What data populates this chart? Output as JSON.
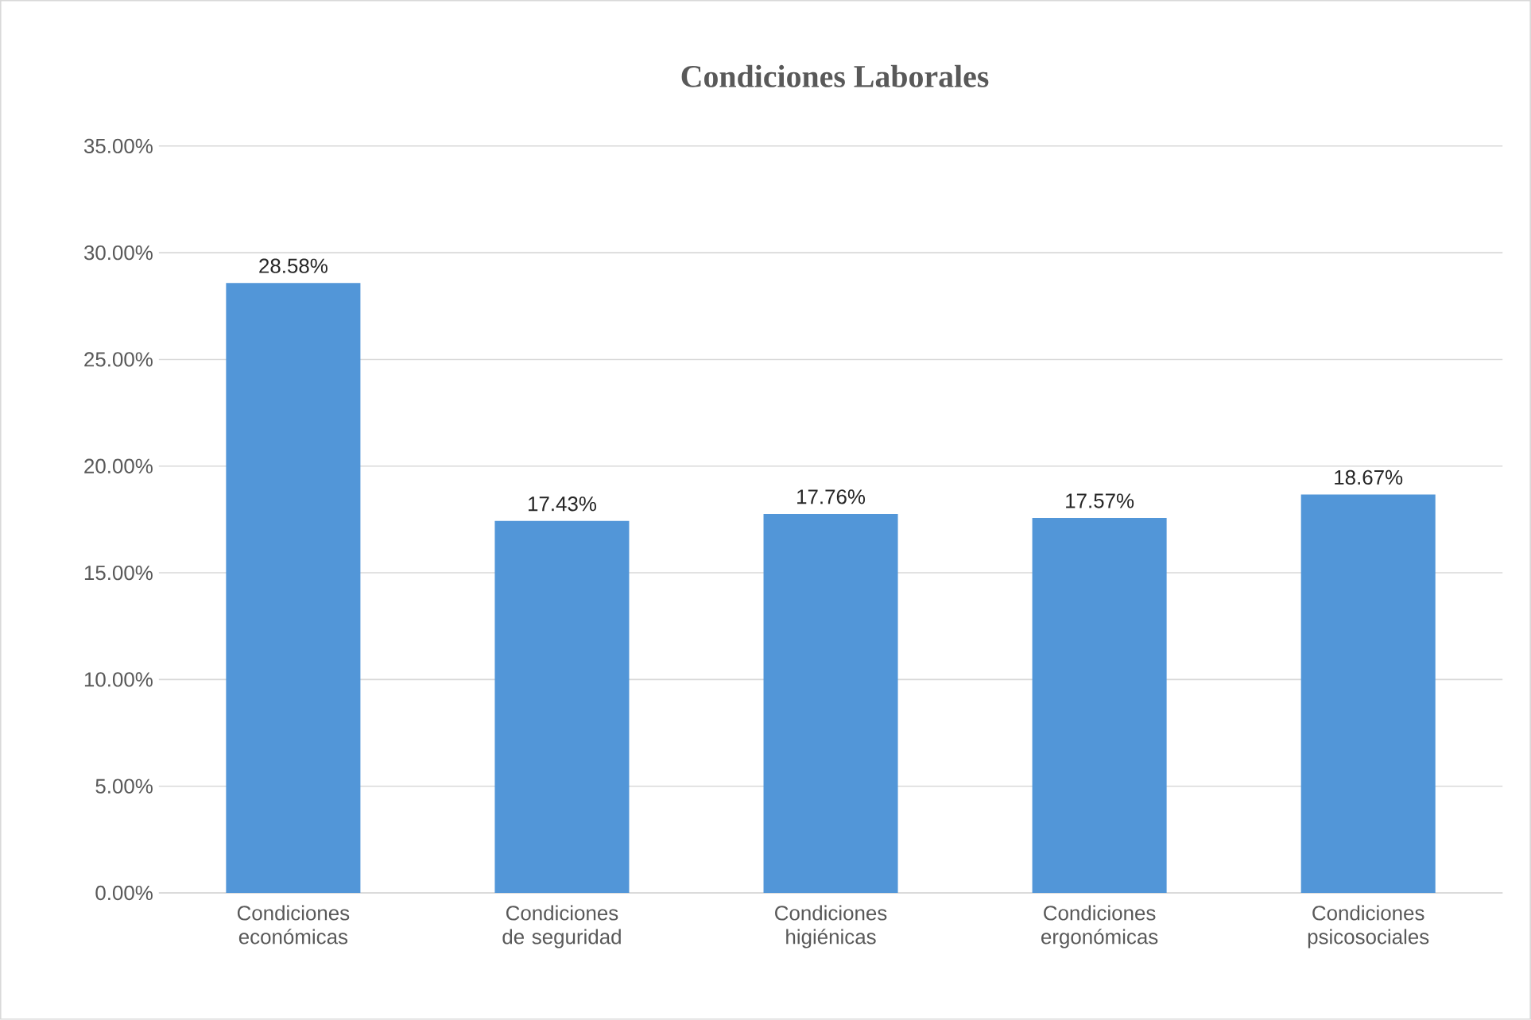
{
  "chart_data": {
    "type": "bar",
    "title": "Condiciones Laborales",
    "categories": [
      "Condiciones económicas",
      "Condiciones de seguridad",
      "Condiciones higiénicas",
      "Condiciones ergonómicas",
      "Condiciones psicosociales"
    ],
    "values": [
      28.58,
      17.43,
      17.76,
      17.57,
      18.67
    ],
    "value_labels": [
      "28.58%",
      "17.43%",
      "17.76%",
      "17.57%",
      "18.67%"
    ],
    "color": "#5296d8",
    "ylim": [
      0,
      35
    ],
    "yticks": [
      {
        "value": 0,
        "label": "0.00%"
      },
      {
        "value": 5,
        "label": "5.00%"
      },
      {
        "value": 10,
        "label": "10.00%"
      },
      {
        "value": 15,
        "label": "15.00%"
      },
      {
        "value": 20,
        "label": "20.00%"
      },
      {
        "value": 25,
        "label": "25.00%"
      },
      {
        "value": 30,
        "label": "30.00%"
      },
      {
        "value": 35,
        "label": "35.00%"
      }
    ],
    "grid": "y"
  }
}
